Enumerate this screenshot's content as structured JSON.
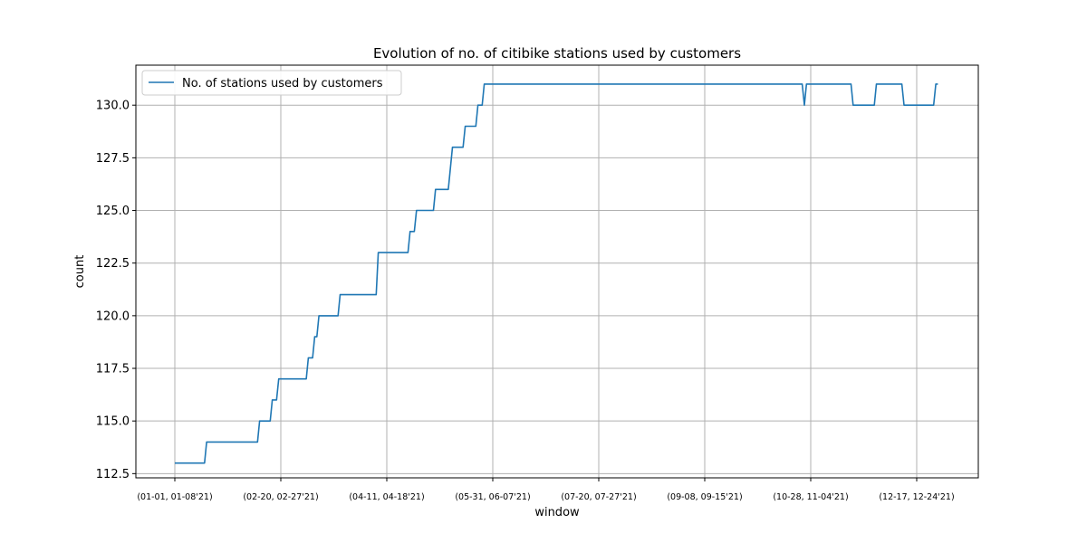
{
  "chart_data": {
    "type": "line",
    "title": "Evolution of no. of citibike stations used by customers",
    "xlabel": "window",
    "ylabel": "count",
    "legend_position": "top-left",
    "grid": true,
    "ylim": [
      112.3,
      131.9
    ],
    "yticks": [
      "112.5",
      "115.0",
      "117.5",
      "120.0",
      "122.5",
      "125.0",
      "127.5",
      "130.0"
    ],
    "xticks": [
      {
        "label": "(01-01, 01-08'21)",
        "x": 0
      },
      {
        "label": "(02-20, 02-27'21)",
        "x": 50
      },
      {
        "label": "(04-11, 04-18'21)",
        "x": 100
      },
      {
        "label": "(05-31, 06-07'21)",
        "x": 150
      },
      {
        "label": "(07-20, 07-27'21)",
        "x": 200
      },
      {
        "label": "(09-08, 09-15'21)",
        "x": 250
      },
      {
        "label": "(10-28, 11-04'21)",
        "x": 300
      },
      {
        "label": "(12-17, 12-24'21)",
        "x": 350
      }
    ],
    "series": [
      {
        "name": "No. of stations used by customers",
        "color": "#1f77b4",
        "points": [
          [
            0,
            113
          ],
          [
            14,
            113
          ],
          [
            15,
            114
          ],
          [
            39,
            114
          ],
          [
            40,
            115
          ],
          [
            45,
            115
          ],
          [
            46,
            116
          ],
          [
            48,
            116
          ],
          [
            49,
            117
          ],
          [
            62,
            117
          ],
          [
            63,
            118
          ],
          [
            65,
            118
          ],
          [
            66,
            119
          ],
          [
            67,
            119
          ],
          [
            68,
            120
          ],
          [
            77,
            120
          ],
          [
            78,
            121
          ],
          [
            95,
            121
          ],
          [
            96,
            123
          ],
          [
            110,
            123
          ],
          [
            111,
            124
          ],
          [
            113,
            124
          ],
          [
            114,
            125
          ],
          [
            122,
            125
          ],
          [
            123,
            126
          ],
          [
            129,
            126
          ],
          [
            130,
            127
          ],
          [
            131,
            128
          ],
          [
            136,
            128
          ],
          [
            137,
            129
          ],
          [
            142,
            129
          ],
          [
            143,
            130
          ],
          [
            145,
            130
          ],
          [
            146,
            131
          ],
          [
            296,
            131
          ],
          [
            297,
            130
          ],
          [
            298,
            131
          ],
          [
            319,
            131
          ],
          [
            320,
            130
          ],
          [
            330,
            130
          ],
          [
            331,
            131
          ],
          [
            343,
            131
          ],
          [
            344,
            130
          ],
          [
            358,
            130
          ],
          [
            359,
            131
          ],
          [
            360,
            131
          ]
        ]
      }
    ]
  }
}
